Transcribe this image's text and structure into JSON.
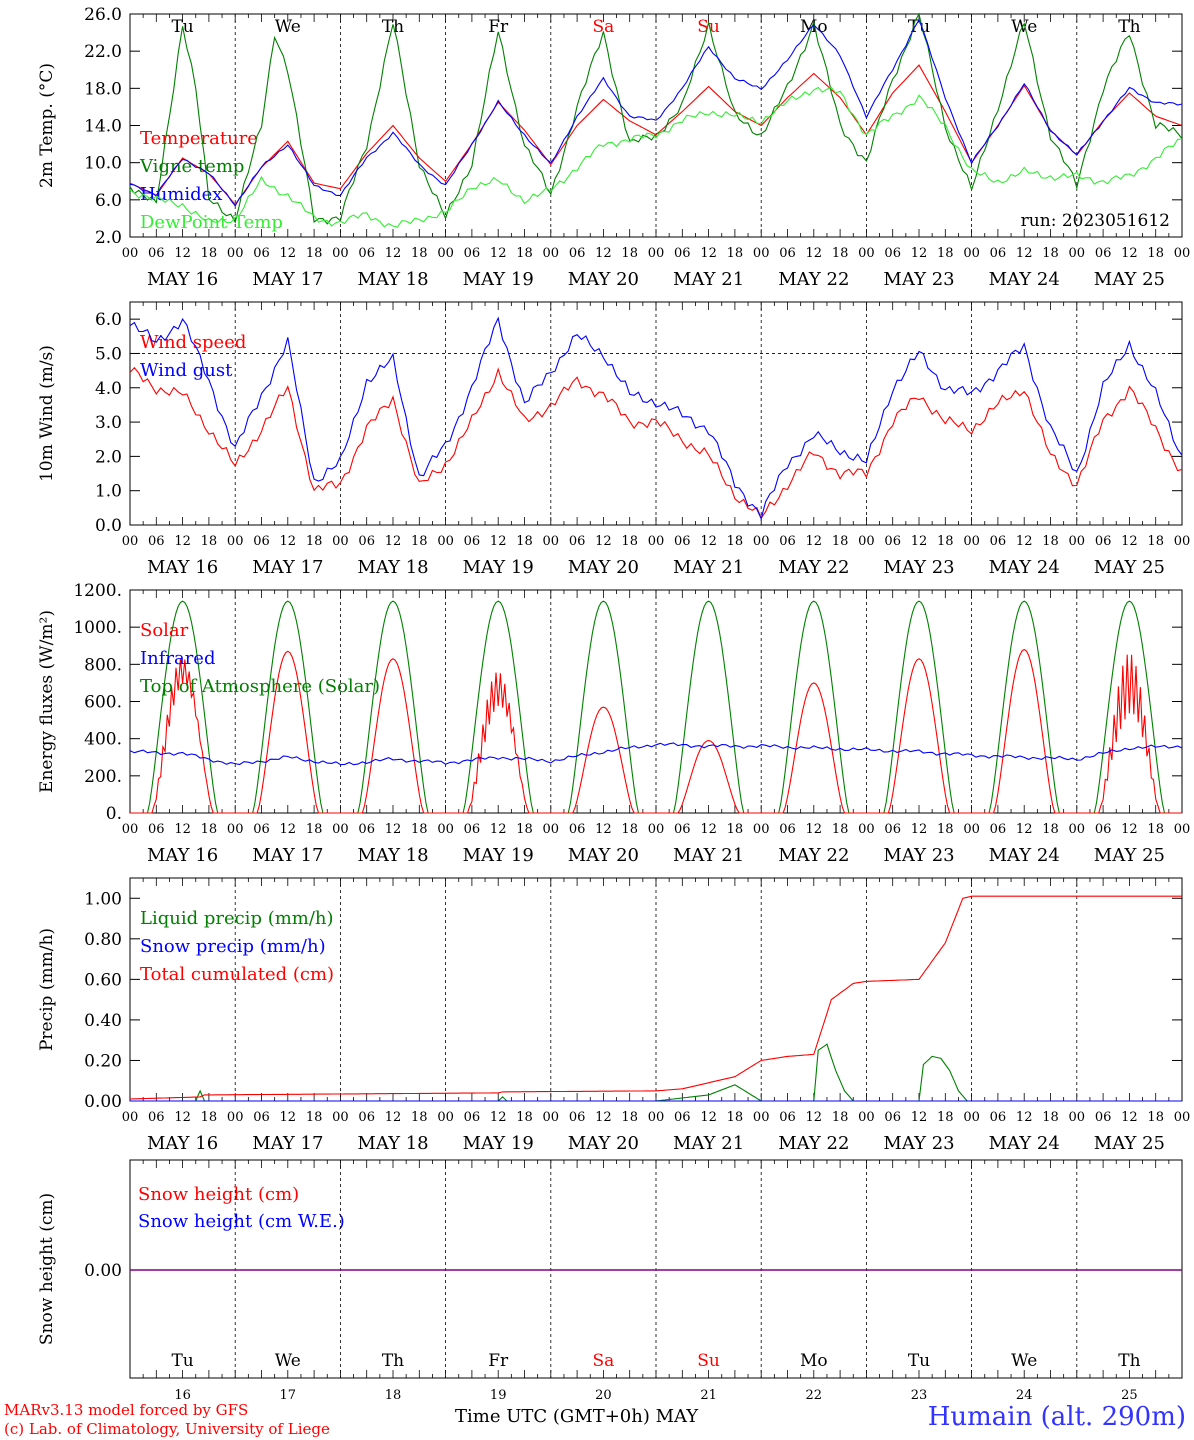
{
  "days": [
    "MAY 16",
    "MAY 17",
    "MAY 18",
    "MAY 19",
    "MAY 20",
    "MAY 21",
    "MAY 22",
    "MAY 23",
    "MAY 24",
    "MAY 25"
  ],
  "weekdays": [
    {
      "label": "Tu",
      "color": "#000000"
    },
    {
      "label": "We",
      "color": "#000000"
    },
    {
      "label": "Th",
      "color": "#000000"
    },
    {
      "label": "Fr",
      "color": "#000000"
    },
    {
      "label": "Sa",
      "color": "#ff0000"
    },
    {
      "label": "Su",
      "color": "#ff0000"
    },
    {
      "label": "Mo",
      "color": "#000000"
    },
    {
      "label": "Tu",
      "color": "#000000"
    },
    {
      "label": "We",
      "color": "#000000"
    },
    {
      "label": "Th",
      "color": "#000000"
    }
  ],
  "hour_ticks": [
    "00",
    "06",
    "12",
    "18"
  ],
  "day_numbers": [
    "16",
    "17",
    "18",
    "19",
    "20",
    "21",
    "22",
    "23",
    "24",
    "25"
  ],
  "footer": {
    "credit1": "MARv3.13 model forced by GFS",
    "credit2": "(c) Lab. of Climatology, University of Liege",
    "time_axis": "Time UTC (GMT+0h) MAY",
    "site": "Humain (alt. 290m)"
  },
  "colors": {
    "red": "#ff0000",
    "green": "#008000",
    "blue": "#0000ff",
    "lightgreen": "#33ee33",
    "purple": "#800080"
  },
  "chart_data": [
    {
      "type": "line",
      "ylabel": "2m Temp. (°C)",
      "ylim": [
        2,
        26
      ],
      "yticks": [
        "2.0",
        "6.0",
        "10.0",
        "14.0",
        "18.0",
        "22.0",
        "26.0"
      ],
      "annotation": "run: 2023051612",
      "x_unit": "hours since MAY 16 00 UTC",
      "series": [
        {
          "name": "Temperature",
          "color": "#ff0000",
          "x": [
            0,
            6,
            12,
            18,
            24,
            30,
            36,
            42,
            48,
            54,
            60,
            66,
            72,
            78,
            84,
            90,
            96,
            102,
            108,
            114,
            120,
            126,
            132,
            138,
            144,
            150,
            156,
            162,
            168,
            174,
            180,
            186,
            192,
            198,
            204,
            210,
            216,
            222,
            228,
            234,
            240
          ],
          "values": [
            7.8,
            6.5,
            10.5,
            8.8,
            5.5,
            9.5,
            12.3,
            7.8,
            7.2,
            11.0,
            14.0,
            10.5,
            8.0,
            12.0,
            16.5,
            13.5,
            9.8,
            14.0,
            16.8,
            14.5,
            13.0,
            15.5,
            18.2,
            15.5,
            14.0,
            17.0,
            19.6,
            17.0,
            13.0,
            17.5,
            20.5,
            15.5,
            10.0,
            14.0,
            18.3,
            13.5,
            10.8,
            14.5,
            17.5,
            15.0,
            14.0
          ]
        },
        {
          "name": "Vigne temp",
          "color": "#008000",
          "x": [
            0,
            6,
            9,
            12,
            15,
            18,
            24,
            30,
            33,
            36,
            42,
            48,
            54,
            60,
            66,
            72,
            78,
            84,
            90,
            96,
            102,
            108,
            114,
            120,
            126,
            132,
            138,
            144,
            150,
            156,
            162,
            168,
            174,
            180,
            186,
            192,
            198,
            204,
            210,
            216,
            222,
            228,
            234,
            240
          ],
          "values": [
            7.6,
            5.5,
            15,
            25,
            18,
            6,
            4,
            14,
            24,
            20,
            4,
            4,
            12,
            25,
            10,
            4,
            10,
            24,
            12,
            6.5,
            16,
            24,
            12,
            13,
            16,
            25,
            15,
            13,
            18,
            25,
            14,
            10,
            19,
            26,
            14,
            7,
            16,
            25,
            13,
            7.5,
            18,
            24,
            14,
            13
          ]
        },
        {
          "name": "Humidex",
          "color": "#0000ff",
          "x": [
            0,
            6,
            12,
            18,
            24,
            30,
            36,
            42,
            48,
            54,
            60,
            66,
            72,
            78,
            84,
            90,
            96,
            102,
            108,
            114,
            120,
            126,
            132,
            138,
            144,
            150,
            156,
            162,
            168,
            174,
            180,
            186,
            192,
            198,
            204,
            210,
            216,
            222,
            228,
            234,
            240
          ],
          "values": [
            7.8,
            6.5,
            10.5,
            8.8,
            5.5,
            9.5,
            12.0,
            7.5,
            6.5,
            10.5,
            13.2,
            9.8,
            7.5,
            12.0,
            16.5,
            13.0,
            9.8,
            15.0,
            19.0,
            15.0,
            14.5,
            18.0,
            22.5,
            19.0,
            18.0,
            21.0,
            25.0,
            21.5,
            15.0,
            20.0,
            25.5,
            17.0,
            10.0,
            14.0,
            18.5,
            13.5,
            10.8,
            14.5,
            18.0,
            16.5,
            16.2
          ]
        },
        {
          "name": "DewPoint Temp",
          "color": "#33ee33",
          "x": [
            0,
            6,
            12,
            18,
            24,
            30,
            36,
            42,
            48,
            54,
            60,
            66,
            72,
            78,
            84,
            90,
            96,
            102,
            108,
            114,
            120,
            126,
            132,
            138,
            144,
            150,
            156,
            162,
            168,
            174,
            180,
            186,
            192,
            198,
            204,
            210,
            216,
            222,
            228,
            234,
            240
          ],
          "values": [
            7.0,
            6.0,
            5.5,
            3.5,
            4.0,
            8.0,
            6.5,
            4.0,
            3.5,
            4.5,
            3.0,
            4.0,
            4.5,
            7.5,
            8.0,
            6.0,
            7.0,
            9.5,
            12.0,
            12.5,
            13.0,
            14.5,
            15.5,
            15.0,
            14.5,
            16.5,
            18.0,
            17.5,
            13.0,
            15.0,
            17.0,
            14.0,
            9.0,
            8.0,
            9.0,
            8.5,
            8.5,
            8.0,
            8.5,
            10.5,
            12.5
          ]
        }
      ]
    },
    {
      "type": "line",
      "ylabel": "10m Wind (m/s)",
      "ylim": [
        0,
        6.5
      ],
      "yticks": [
        "0.0",
        "1.0",
        "2.0",
        "3.0",
        "4.0",
        "5.0",
        "6.0"
      ],
      "x_unit": "hours since MAY 16 00 UTC",
      "series": [
        {
          "name": "Wind speed",
          "color": "#ff0000",
          "x": [
            0,
            6,
            12,
            18,
            24,
            30,
            36,
            42,
            48,
            54,
            60,
            66,
            72,
            78,
            84,
            90,
            96,
            102,
            108,
            114,
            120,
            126,
            132,
            138,
            144,
            150,
            156,
            162,
            168,
            174,
            180,
            186,
            192,
            198,
            204,
            210,
            216,
            222,
            228,
            234,
            240
          ],
          "values": [
            4.5,
            4.0,
            3.8,
            2.8,
            1.7,
            2.8,
            4.0,
            1.0,
            1.2,
            2.8,
            3.7,
            1.1,
            1.8,
            3.0,
            4.5,
            3.0,
            3.5,
            4.2,
            3.8,
            3.0,
            3.0,
            2.5,
            2.0,
            0.9,
            0.2,
            1.2,
            2.1,
            1.5,
            1.5,
            3.0,
            3.8,
            3.0,
            2.8,
            3.5,
            4.0,
            2.0,
            1.2,
            3.0,
            4.0,
            2.8,
            1.5
          ]
        },
        {
          "name": "Wind gust",
          "color": "#0000ff",
          "x": [
            0,
            6,
            12,
            18,
            24,
            30,
            36,
            42,
            48,
            54,
            60,
            66,
            72,
            78,
            84,
            90,
            96,
            102,
            108,
            114,
            120,
            126,
            132,
            138,
            144,
            150,
            156,
            162,
            168,
            174,
            180,
            186,
            192,
            198,
            204,
            210,
            216,
            222,
            228,
            234,
            240
          ],
          "values": [
            5.9,
            5.3,
            6.0,
            4.2,
            2.2,
            3.8,
            5.3,
            1.3,
            1.8,
            4.2,
            4.8,
            1.4,
            2.3,
            4.0,
            6.0,
            3.5,
            4.5,
            5.5,
            5.0,
            3.8,
            3.6,
            3.2,
            2.8,
            1.2,
            0.3,
            1.8,
            2.6,
            2.2,
            1.8,
            4.0,
            5.0,
            4.0,
            3.8,
            4.5,
            5.2,
            2.8,
            1.5,
            4.0,
            5.3,
            3.8,
            2.0
          ]
        }
      ]
    },
    {
      "type": "line",
      "ylabel": "Energy fluxes (W/m²)",
      "ylim": [
        0,
        1200
      ],
      "yticks": [
        "0.",
        "200.",
        "400.",
        "600.",
        "800.",
        "1000.",
        "1200."
      ],
      "x_unit": "hours since MAY 16 00 UTC",
      "toa_daily_peak": 1140,
      "solar_daily_peak": [
        880,
        870,
        830,
        780,
        570,
        390,
        700,
        830,
        880,
        860
      ],
      "series": [
        {
          "name": "Solar",
          "color": "#ff0000"
        },
        {
          "name": "Infrared",
          "color": "#0000ff",
          "x": [
            0,
            12,
            24,
            36,
            48,
            60,
            72,
            84,
            96,
            108,
            120,
            132,
            144,
            156,
            168,
            180,
            192,
            204,
            216,
            228,
            240
          ],
          "values": [
            330,
            320,
            260,
            300,
            260,
            290,
            270,
            300,
            280,
            330,
            370,
            360,
            360,
            350,
            340,
            330,
            310,
            300,
            290,
            350,
            360
          ]
        },
        {
          "name": "Top of Atmosphere (Solar)",
          "color": "#008000"
        }
      ]
    },
    {
      "type": "line",
      "ylabel": "Precip (mm/h)",
      "ylim": [
        0,
        1.1
      ],
      "yticks": [
        "0.00",
        "0.20",
        "0.40",
        "0.60",
        "0.80",
        "1.00"
      ],
      "x_unit": "hours since MAY 16 00 UTC",
      "series": [
        {
          "name": "Liquid precip (mm/h)",
          "color": "#008000",
          "x": [
            0,
            15,
            16,
            17,
            84,
            85,
            86,
            120,
            132,
            138,
            144,
            150,
            156,
            157,
            159,
            161,
            163,
            165,
            170,
            180,
            181,
            183,
            185,
            187,
            189,
            191,
            192,
            240
          ],
          "values": [
            0,
            0,
            0.05,
            0,
            0,
            0.02,
            0,
            0,
            0.03,
            0.08,
            0,
            0,
            0,
            0.25,
            0.28,
            0.15,
            0.05,
            0,
            0,
            0,
            0.18,
            0.22,
            0.21,
            0.15,
            0.05,
            0,
            0,
            0
          ]
        },
        {
          "name": "Snow precip (mm/h)",
          "color": "#0000ff",
          "x": [
            0,
            240
          ],
          "values": [
            0,
            0
          ]
        },
        {
          "name": "Total cumulated (cm)",
          "color": "#ff0000",
          "x": [
            0,
            16,
            17,
            84,
            85,
            120,
            126,
            132,
            138,
            144,
            150,
            156,
            160,
            165,
            168,
            180,
            186,
            190,
            192,
            240
          ],
          "values": [
            0.01,
            0.02,
            0.03,
            0.04,
            0.045,
            0.05,
            0.06,
            0.09,
            0.12,
            0.2,
            0.22,
            0.23,
            0.5,
            0.58,
            0.59,
            0.6,
            0.78,
            1.0,
            1.01,
            1.01
          ]
        }
      ]
    },
    {
      "type": "line",
      "ylabel": "Snow height (cm)",
      "yticks": [
        "0.00"
      ],
      "x_unit": "hours since MAY 16 00 UTC",
      "series": [
        {
          "name": "Snow height (cm)",
          "color": "#ff0000",
          "x": [
            0,
            240
          ],
          "values": [
            0,
            0
          ]
        },
        {
          "name": "Snow height (cm W.E.)",
          "color": "#0000ff",
          "x": [
            0,
            240
          ],
          "values": [
            0,
            0
          ]
        }
      ]
    }
  ]
}
